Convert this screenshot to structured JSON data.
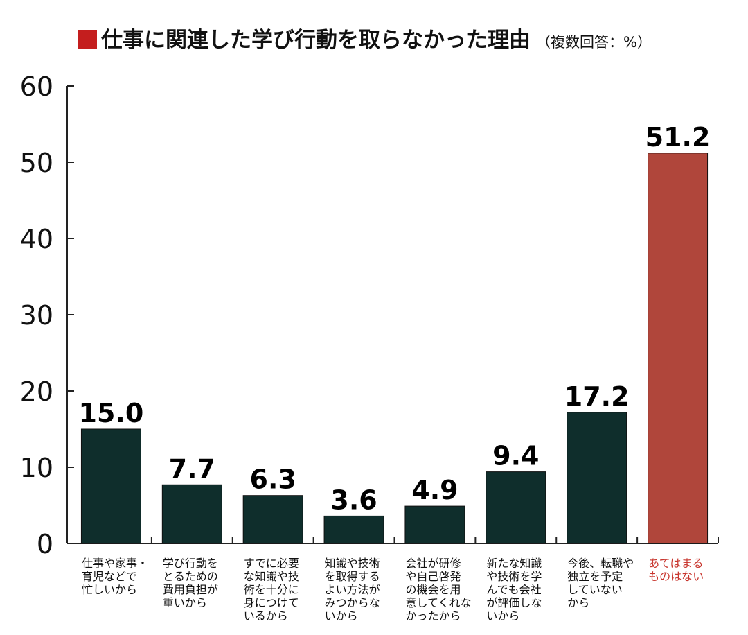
{
  "chart_data": {
    "type": "bar",
    "title": "仕事に関連した学び行動を取らなかった理由",
    "subtitle": "（複数回答：%）",
    "categories": [
      [
        "仕事や家事・",
        "育児などで",
        "忙しいから"
      ],
      [
        "学び行動を",
        "とるための",
        "費用負担が",
        "重いから"
      ],
      [
        "すでに必要",
        "な知識や技",
        "術を十分に",
        "身につけて",
        "いるから"
      ],
      [
        "知識や技術",
        "を取得する",
        "よい方法が",
        "みつからな",
        "いから"
      ],
      [
        "会社が研修",
        "や自己啓発",
        "の機会を用",
        "意してくれな",
        "かったから"
      ],
      [
        "新たな知識",
        "や技術を学",
        "んでも会社",
        "が評価しな",
        "いから"
      ],
      [
        "今後、転職や",
        "独立を予定",
        "していない",
        "から"
      ],
      [
        "あてはまる",
        "ものはない"
      ]
    ],
    "values": [
      15.0,
      7.7,
      6.3,
      3.6,
      4.9,
      9.4,
      17.2,
      51.2
    ],
    "value_labels": [
      "15.0",
      "7.7",
      "6.3",
      "3.6",
      "4.9",
      "9.4",
      "17.2",
      "51.2"
    ],
    "highlight_index": 7,
    "ylim": [
      0,
      60
    ],
    "yticks": [
      "0",
      "10",
      "20",
      "30",
      "40",
      "50",
      "60"
    ],
    "xlabel": "",
    "ylabel": "",
    "grid": false,
    "colors": {
      "bar": "#0f2e2c",
      "highlight_bar": "#b0463b",
      "highlight_label": "#c8362e",
      "title_square": "#c41e1e",
      "axis": "#222222",
      "text": "#111111"
    }
  }
}
